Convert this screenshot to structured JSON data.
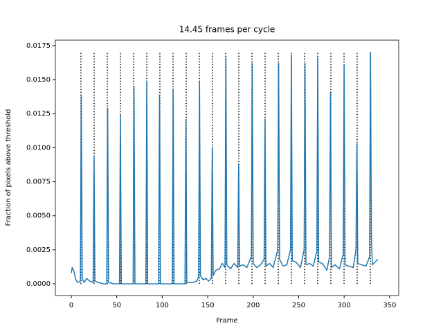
{
  "chart_data": {
    "type": "line",
    "title": "14.45 frames per cycle",
    "xlabel": "Frame",
    "ylabel": "Fraction of pixels above threshold",
    "color": "#1f77b4",
    "x": [
      0,
      1,
      3,
      5,
      7,
      10,
      11,
      12,
      14,
      17,
      20,
      24,
      25,
      26,
      30,
      35,
      39,
      40,
      41,
      47,
      53,
      54,
      55,
      61,
      68,
      69,
      70,
      76,
      82,
      83,
      84,
      90,
      96,
      97,
      98,
      105,
      111,
      112,
      113,
      119,
      125,
      126,
      127,
      133,
      138,
      140,
      141,
      142,
      145,
      148,
      151,
      154,
      155,
      156,
      159,
      163,
      166,
      169,
      170,
      171,
      175,
      179,
      183,
      184,
      185,
      189,
      193,
      198,
      199,
      200,
      204,
      208,
      212,
      213,
      214,
      218,
      222,
      227,
      228,
      229,
      233,
      237,
      241,
      242,
      243,
      247,
      252,
      256,
      257,
      258,
      262,
      266,
      270,
      271,
      272,
      276,
      281,
      284,
      285,
      286,
      290,
      295,
      299,
      300,
      301,
      305,
      310,
      313,
      314,
      315,
      319,
      324,
      328,
      329,
      330,
      331,
      334,
      337
    ],
    "values": [
      0.0008,
      0.0012,
      0.0009,
      0.0003,
      0.0001,
      0.0002,
      0.0138,
      0.0004,
      0.0001,
      0.0004,
      0.0002,
      0.0001,
      0.0094,
      0.0002,
      0.0001,
      0.0,
      0.0,
      0.0129,
      0.0001,
      0.0,
      0.0,
      0.0124,
      0.0,
      0.0,
      0.0,
      0.0145,
      0.0,
      0.0,
      0.0,
      0.0149,
      0.0,
      0.0,
      0.0,
      0.0138,
      0.0,
      0.0,
      0.0,
      0.0143,
      0.0,
      0.0,
      0.0,
      0.0121,
      0.0001,
      0.0001,
      0.0002,
      0.0005,
      0.0148,
      0.0006,
      0.0003,
      0.0004,
      0.0002,
      0.0004,
      0.01,
      0.0006,
      0.001,
      0.0011,
      0.0015,
      0.0012,
      0.0166,
      0.0014,
      0.0011,
      0.0015,
      0.0012,
      0.0087,
      0.0013,
      0.0014,
      0.0012,
      0.002,
      0.0162,
      0.0015,
      0.0012,
      0.0014,
      0.0018,
      0.0121,
      0.0013,
      0.0015,
      0.0012,
      0.0025,
      0.0162,
      0.0018,
      0.0013,
      0.0014,
      0.0025,
      0.0168,
      0.0017,
      0.0016,
      0.0012,
      0.0025,
      0.0162,
      0.0014,
      0.0015,
      0.0013,
      0.0024,
      0.0166,
      0.0016,
      0.0015,
      0.001,
      0.002,
      0.014,
      0.0012,
      0.0014,
      0.0011,
      0.0022,
      0.0161,
      0.0014,
      0.0013,
      0.0012,
      0.0025,
      0.0103,
      0.0015,
      0.0014,
      0.0013,
      0.002,
      0.017,
      0.0034,
      0.0014,
      0.0016,
      0.0018
    ],
    "cycle_lines": {
      "x": [
        10.6,
        25.1,
        39.6,
        54.0,
        68.5,
        83.0,
        97.4,
        111.9,
        126.4,
        140.8,
        155.3,
        169.7,
        184.2,
        198.6,
        213.1,
        227.6,
        242.0,
        256.5,
        270.9,
        285.4,
        299.9,
        314.3,
        328.8
      ],
      "ymin": 0,
      "ymax": 0.017,
      "color": "#000000"
    },
    "xlim": [
      -17.5,
      360
    ],
    "ylim": [
      -0.00086,
      0.0179
    ],
    "xticks": [
      0,
      50,
      100,
      150,
      200,
      250,
      300,
      350
    ],
    "yticks": [
      {
        "value": 0,
        "label": "0.0000"
      },
      {
        "value": 0.0025,
        "label": "0.0025"
      },
      {
        "value": 0.005,
        "label": "0.0050"
      },
      {
        "value": 0.0075,
        "label": "0.0075"
      },
      {
        "value": 0.01,
        "label": "0.0100"
      },
      {
        "value": 0.0125,
        "label": "0.0125"
      },
      {
        "value": 0.015,
        "label": "0.0150"
      },
      {
        "value": 0.0175,
        "label": "0.0175"
      }
    ]
  }
}
